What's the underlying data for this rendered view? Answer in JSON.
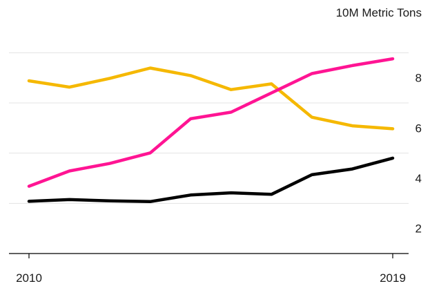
{
  "chart_data": {
    "type": "line",
    "title": "",
    "unit_label": "10M Metric Tons",
    "xlabel": "",
    "ylabel": "",
    "x": [
      2010,
      2011,
      2012,
      2013,
      2014,
      2015,
      2016,
      2017,
      2018,
      2019
    ],
    "x_tick_labels": [
      "2010",
      "2019"
    ],
    "y_ticks": [
      2,
      4,
      6,
      8
    ],
    "y_tick_labels": [
      "2",
      "4",
      "6",
      "8"
    ],
    "ylim": [
      1,
      10
    ],
    "grid": true,
    "legend": "none",
    "series": [
      {
        "color": "#f5b800",
        "values": [
          7.88,
          7.63,
          7.98,
          8.39,
          8.09,
          7.53,
          7.76,
          6.43,
          6.09,
          5.97
        ]
      },
      {
        "color": "#ff1493",
        "values": [
          3.68,
          4.29,
          4.59,
          5.01,
          6.37,
          6.63,
          7.4,
          8.17,
          8.49,
          8.76
        ]
      },
      {
        "color": "#000000",
        "values": [
          3.08,
          3.15,
          3.1,
          3.07,
          3.33,
          3.42,
          3.36,
          4.14,
          4.37,
          4.8
        ]
      }
    ]
  }
}
